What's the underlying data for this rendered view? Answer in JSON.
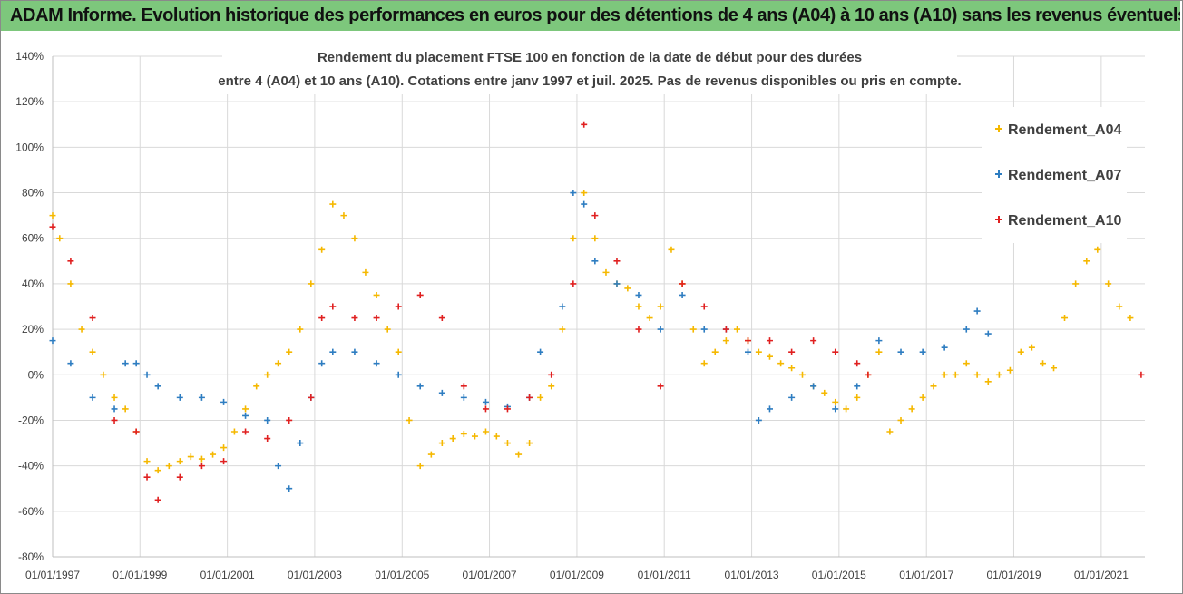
{
  "header": {
    "title": "ADAM Informe. Evolution historique des performances en euros pour des détentions de 4 ans (A04) à 10 ans (A10) sans les revenus éventuels"
  },
  "chart_data": {
    "type": "scatter",
    "title_lines": [
      "Rendement du placement FTSE 100 en fonction de la date de début pour des durées",
      "entre 4 (A04)  et 10 ans (A10). Cotations entre janv 1997 et juil. 2025. Pas de revenus disponibles ou pris en compte."
    ],
    "xlabel": "",
    "ylabel": "",
    "x_ticks": [
      "01/01/1997",
      "01/01/1999",
      "01/01/2001",
      "01/01/2003",
      "01/01/2005",
      "01/01/2007",
      "01/01/2009",
      "01/01/2011",
      "01/01/2013",
      "01/01/2015",
      "01/01/2017",
      "01/01/2019",
      "01/01/2021"
    ],
    "y_ticks": [
      "140%",
      "120%",
      "100%",
      "80%",
      "60%",
      "40%",
      "20%",
      "0%",
      "-20%",
      "-40%",
      "-60%",
      "-80%"
    ],
    "xlim": [
      "1997-01-01",
      "2022-01-01"
    ],
    "ylim": [
      -80,
      140
    ],
    "y_unit": "%",
    "legend_position": "right",
    "series": [
      {
        "name": "Rendement_A04",
        "color": "#f5b800",
        "marker": "+",
        "points": [
          [
            "1997-01-01",
            70
          ],
          [
            "1997-03-01",
            60
          ],
          [
            "1997-06-01",
            40
          ],
          [
            "1997-09-01",
            20
          ],
          [
            "1997-12-01",
            10
          ],
          [
            "1998-03-01",
            0
          ],
          [
            "1998-06-01",
            -10
          ],
          [
            "1998-09-01",
            -15
          ],
          [
            "1998-12-01",
            -25
          ],
          [
            "1999-03-01",
            -38
          ],
          [
            "1999-06-01",
            -42
          ],
          [
            "1999-09-01",
            -40
          ],
          [
            "1999-12-01",
            -38
          ],
          [
            "2000-03-01",
            -36
          ],
          [
            "2000-06-01",
            -37
          ],
          [
            "2000-09-01",
            -35
          ],
          [
            "2000-12-01",
            -32
          ],
          [
            "2001-03-01",
            -25
          ],
          [
            "2001-06-01",
            -15
          ],
          [
            "2001-09-01",
            -5
          ],
          [
            "2001-12-01",
            0
          ],
          [
            "2002-03-01",
            5
          ],
          [
            "2002-06-01",
            10
          ],
          [
            "2002-09-01",
            20
          ],
          [
            "2002-12-01",
            40
          ],
          [
            "2003-03-01",
            55
          ],
          [
            "2003-06-01",
            75
          ],
          [
            "2003-09-01",
            70
          ],
          [
            "2003-12-01",
            60
          ],
          [
            "2004-03-01",
            45
          ],
          [
            "2004-06-01",
            35
          ],
          [
            "2004-09-01",
            20
          ],
          [
            "2004-12-01",
            10
          ],
          [
            "2005-03-01",
            -20
          ],
          [
            "2005-06-01",
            -40
          ],
          [
            "2005-09-01",
            -35
          ],
          [
            "2005-12-01",
            -30
          ],
          [
            "2006-03-01",
            -28
          ],
          [
            "2006-06-01",
            -26
          ],
          [
            "2006-09-01",
            -27
          ],
          [
            "2006-12-01",
            -25
          ],
          [
            "2007-03-01",
            -27
          ],
          [
            "2007-06-01",
            -30
          ],
          [
            "2007-09-01",
            -35
          ],
          [
            "2007-12-01",
            -30
          ],
          [
            "2008-03-01",
            -10
          ],
          [
            "2008-06-01",
            -5
          ],
          [
            "2008-09-01",
            20
          ],
          [
            "2008-12-01",
            60
          ],
          [
            "2009-03-01",
            80
          ],
          [
            "2009-06-01",
            60
          ],
          [
            "2009-09-01",
            45
          ],
          [
            "2009-12-01",
            40
          ],
          [
            "2010-03-01",
            38
          ],
          [
            "2010-06-01",
            30
          ],
          [
            "2010-09-01",
            25
          ],
          [
            "2010-12-01",
            30
          ],
          [
            "2011-03-01",
            55
          ],
          [
            "2011-06-01",
            40
          ],
          [
            "2011-09-01",
            20
          ],
          [
            "2011-12-01",
            5
          ],
          [
            "2012-03-01",
            10
          ],
          [
            "2012-06-01",
            15
          ],
          [
            "2012-09-01",
            20
          ],
          [
            "2012-12-01",
            15
          ],
          [
            "2013-03-01",
            10
          ],
          [
            "2013-06-01",
            8
          ],
          [
            "2013-09-01",
            5
          ],
          [
            "2013-12-01",
            3
          ],
          [
            "2014-03-01",
            0
          ],
          [
            "2014-06-01",
            -5
          ],
          [
            "2014-09-01",
            -8
          ],
          [
            "2014-12-01",
            -12
          ],
          [
            "2015-03-01",
            -15
          ],
          [
            "2015-06-01",
            -10
          ],
          [
            "2015-09-01",
            0
          ],
          [
            "2015-12-01",
            10
          ],
          [
            "2016-03-01",
            -25
          ],
          [
            "2016-06-01",
            -20
          ],
          [
            "2016-09-01",
            -15
          ],
          [
            "2016-12-01",
            -10
          ],
          [
            "2017-03-01",
            -5
          ],
          [
            "2017-06-01",
            0
          ],
          [
            "2017-09-01",
            0
          ],
          [
            "2017-12-01",
            5
          ],
          [
            "2018-03-01",
            0
          ],
          [
            "2018-06-01",
            -3
          ],
          [
            "2018-09-01",
            0
          ],
          [
            "2018-12-01",
            2
          ],
          [
            "2019-03-01",
            10
          ],
          [
            "2019-06-01",
            12
          ],
          [
            "2019-09-01",
            5
          ],
          [
            "2019-12-01",
            3
          ],
          [
            "2020-03-01",
            25
          ],
          [
            "2020-06-01",
            40
          ],
          [
            "2020-09-01",
            50
          ],
          [
            "2020-12-01",
            55
          ],
          [
            "2021-03-01",
            40
          ],
          [
            "2021-06-01",
            30
          ],
          [
            "2021-09-01",
            25
          ]
        ]
      },
      {
        "name": "Rendement_A07",
        "color": "#2e7dc1",
        "marker": "+",
        "points": [
          [
            "1997-01-01",
            15
          ],
          [
            "1997-06-01",
            5
          ],
          [
            "1997-12-01",
            -10
          ],
          [
            "1998-06-01",
            -15
          ],
          [
            "1998-09-01",
            5
          ],
          [
            "1998-12-01",
            5
          ],
          [
            "1999-03-01",
            0
          ],
          [
            "1999-06-01",
            -5
          ],
          [
            "1999-12-01",
            -10
          ],
          [
            "2000-06-01",
            -10
          ],
          [
            "2000-12-01",
            -12
          ],
          [
            "2001-06-01",
            -18
          ],
          [
            "2001-12-01",
            -20
          ],
          [
            "2002-03-01",
            -40
          ],
          [
            "2002-06-01",
            -50
          ],
          [
            "2002-09-01",
            -30
          ],
          [
            "2002-12-01",
            -10
          ],
          [
            "2003-03-01",
            5
          ],
          [
            "2003-06-01",
            10
          ],
          [
            "2003-12-01",
            10
          ],
          [
            "2004-06-01",
            5
          ],
          [
            "2004-12-01",
            0
          ],
          [
            "2005-06-01",
            -5
          ],
          [
            "2005-12-01",
            -8
          ],
          [
            "2006-06-01",
            -10
          ],
          [
            "2006-12-01",
            -12
          ],
          [
            "2007-06-01",
            -14
          ],
          [
            "2007-12-01",
            -10
          ],
          [
            "2008-03-01",
            10
          ],
          [
            "2008-09-01",
            30
          ],
          [
            "2008-12-01",
            80
          ],
          [
            "2009-03-01",
            75
          ],
          [
            "2009-06-01",
            50
          ],
          [
            "2009-12-01",
            40
          ],
          [
            "2010-06-01",
            35
          ],
          [
            "2010-12-01",
            20
          ],
          [
            "2011-06-01",
            35
          ],
          [
            "2011-12-01",
            20
          ],
          [
            "2012-06-01",
            20
          ],
          [
            "2012-12-01",
            10
          ],
          [
            "2013-03-01",
            -20
          ],
          [
            "2013-06-01",
            -15
          ],
          [
            "2013-12-01",
            -10
          ],
          [
            "2014-06-01",
            -5
          ],
          [
            "2014-12-01",
            -15
          ],
          [
            "2015-06-01",
            -5
          ],
          [
            "2015-12-01",
            15
          ],
          [
            "2016-06-01",
            10
          ],
          [
            "2016-12-01",
            10
          ],
          [
            "2017-06-01",
            12
          ],
          [
            "2017-12-01",
            20
          ],
          [
            "2018-03-01",
            28
          ],
          [
            "2018-06-01",
            18
          ]
        ]
      },
      {
        "name": "Rendement_A10",
        "color": "#e02020",
        "marker": "+",
        "points": [
          [
            "1997-01-01",
            65
          ],
          [
            "1997-06-01",
            50
          ],
          [
            "1997-12-01",
            25
          ],
          [
            "1998-06-01",
            -20
          ],
          [
            "1998-12-01",
            -25
          ],
          [
            "1999-03-01",
            -45
          ],
          [
            "1999-06-01",
            -55
          ],
          [
            "1999-12-01",
            -45
          ],
          [
            "2000-06-01",
            -40
          ],
          [
            "2000-12-01",
            -38
          ],
          [
            "2001-06-01",
            -25
          ],
          [
            "2001-12-01",
            -28
          ],
          [
            "2002-06-01",
            -20
          ],
          [
            "2002-12-01",
            -10
          ],
          [
            "2003-03-01",
            25
          ],
          [
            "2003-06-01",
            30
          ],
          [
            "2003-12-01",
            25
          ],
          [
            "2004-06-01",
            25
          ],
          [
            "2004-12-01",
            30
          ],
          [
            "2005-06-01",
            35
          ],
          [
            "2005-12-01",
            25
          ],
          [
            "2006-06-01",
            -5
          ],
          [
            "2006-12-01",
            -15
          ],
          [
            "2007-06-01",
            -15
          ],
          [
            "2007-12-01",
            -10
          ],
          [
            "2008-06-01",
            0
          ],
          [
            "2008-12-01",
            40
          ],
          [
            "2009-03-01",
            110
          ],
          [
            "2009-06-01",
            70
          ],
          [
            "2009-12-01",
            50
          ],
          [
            "2010-06-01",
            20
          ],
          [
            "2010-12-01",
            -5
          ],
          [
            "2011-06-01",
            40
          ],
          [
            "2011-12-01",
            30
          ],
          [
            "2012-06-01",
            20
          ],
          [
            "2012-12-01",
            15
          ],
          [
            "2013-06-01",
            15
          ],
          [
            "2013-12-01",
            10
          ],
          [
            "2014-06-01",
            15
          ],
          [
            "2014-12-01",
            10
          ],
          [
            "2015-06-01",
            5
          ],
          [
            "2015-09-01",
            0
          ],
          [
            "2021-12-01",
            0
          ]
        ]
      }
    ]
  }
}
